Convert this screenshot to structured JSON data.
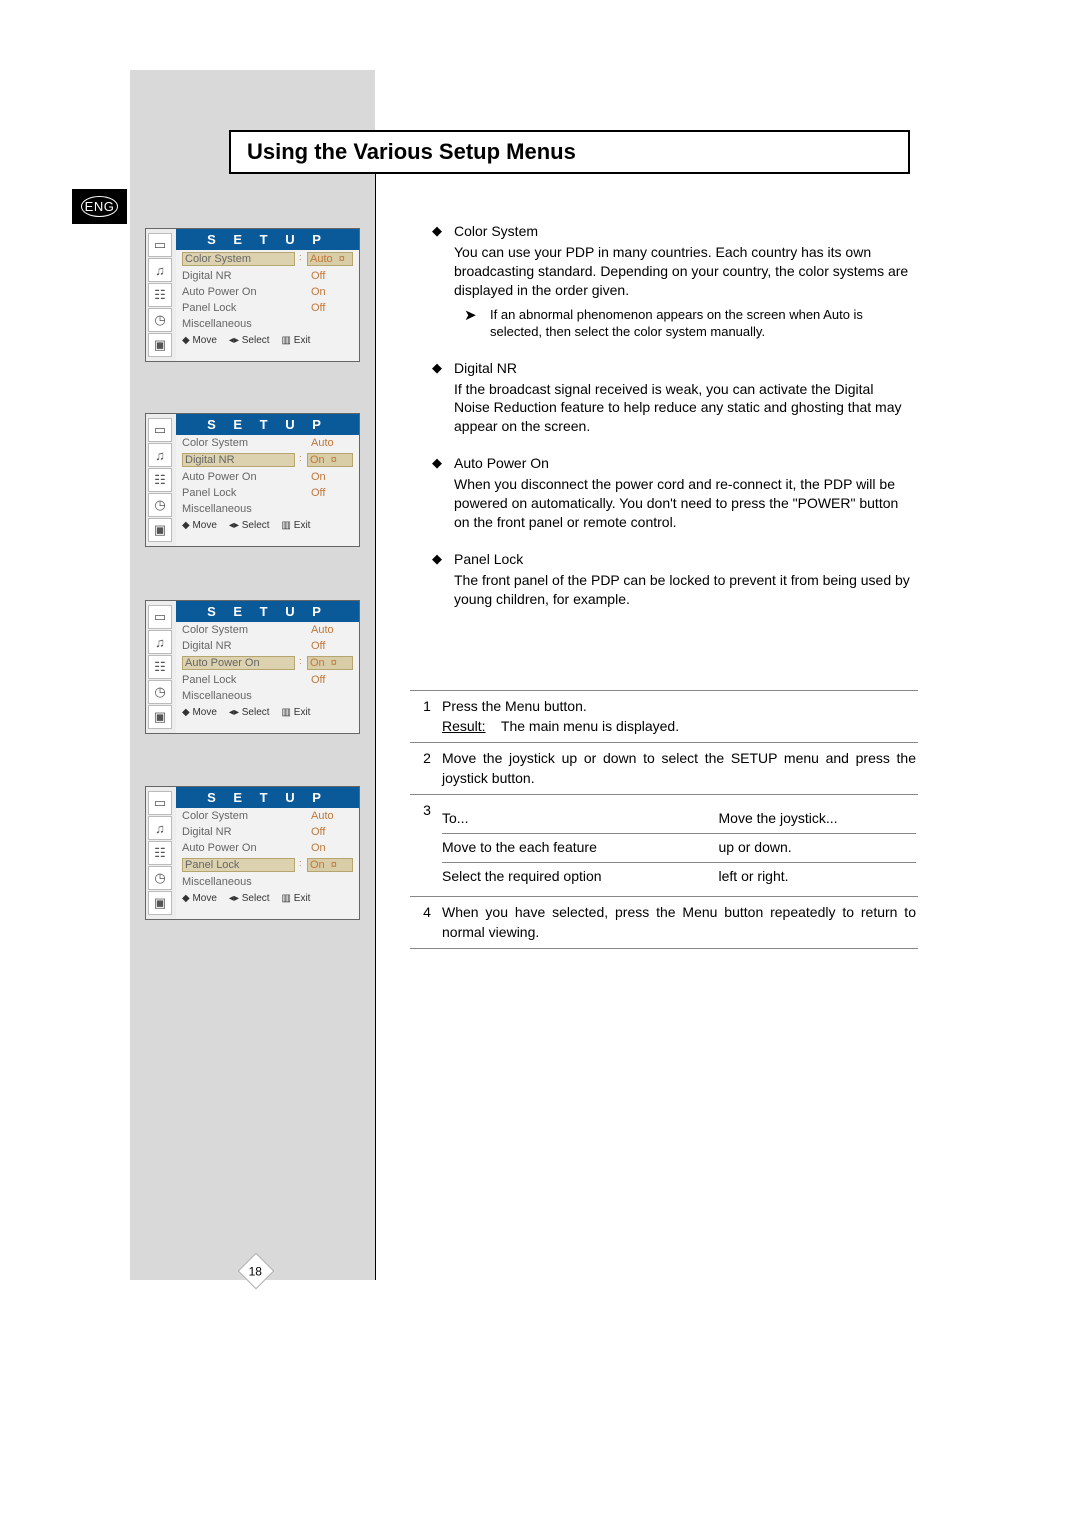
{
  "badge": "ENG",
  "title": "Using the Various Setup Menus",
  "page_number": "18",
  "setup_header": "S E T U P",
  "footer": {
    "move": "Move",
    "select": "Select",
    "exit": "Exit"
  },
  "menus": [
    {
      "rows": [
        {
          "label": "Color System",
          "value": "Auto",
          "highlight_value": true,
          "tick": true
        },
        {
          "label": "Digital NR",
          "value": "Off"
        },
        {
          "label": "Auto Power On",
          "value": "On"
        },
        {
          "label": "Panel Lock",
          "value": "Off"
        },
        {
          "label": "Miscellaneous",
          "value": ""
        }
      ]
    },
    {
      "rows": [
        {
          "label": "Color System",
          "value": "Auto"
        },
        {
          "label": "Digital NR",
          "value": "On",
          "highlight_value": true,
          "tick": true
        },
        {
          "label": "Auto Power On",
          "value": "On"
        },
        {
          "label": "Panel Lock",
          "value": "Off"
        },
        {
          "label": "Miscellaneous",
          "value": ""
        }
      ]
    },
    {
      "rows": [
        {
          "label": "Color System",
          "value": "Auto"
        },
        {
          "label": "Digital NR",
          "value": "Off"
        },
        {
          "label": "Auto Power On",
          "value": "On",
          "highlight_value": true,
          "tick": true
        },
        {
          "label": "Panel Lock",
          "value": "Off"
        },
        {
          "label": "Miscellaneous",
          "value": ""
        }
      ]
    },
    {
      "rows": [
        {
          "label": "Color System",
          "value": "Auto"
        },
        {
          "label": "Digital NR",
          "value": "Off"
        },
        {
          "label": "Auto Power On",
          "value": "On"
        },
        {
          "label": "Panel Lock",
          "value": "On",
          "highlight_value": true,
          "tick": true
        },
        {
          "label": "Miscellaneous",
          "value": ""
        }
      ]
    }
  ],
  "menu_tops": [
    228,
    413,
    600,
    786
  ],
  "icons": [
    "▭",
    "♫",
    "☷",
    "◷",
    "▣"
  ],
  "bullets": [
    {
      "title": "Color System",
      "text": "You can use your PDP in many countries. Each country has its own broadcasting standard. Depending on your country, the color systems are displayed in the order given.",
      "note": "If an abnormal phenomenon appears on the screen when Auto is selected, then select the color system manually."
    },
    {
      "title": "Digital NR",
      "text": "If the broadcast signal received is weak, you can activate the Digital Noise Reduction feature to help reduce any static and ghosting that may appear on the screen."
    },
    {
      "title": "Auto Power On",
      "text": "When you disconnect the power cord and re-connect it, the PDP will be powered on automatically. You don't need to press the \"POWER\" button on the front panel or remote control."
    },
    {
      "title": "Panel Lock",
      "text": "The front panel of the PDP can be locked to prevent it from being used by young children, for example."
    }
  ],
  "steps": {
    "s1_a": "Press the Menu button.",
    "s1_r": "Result:",
    "s1_b": "The main menu is displayed.",
    "s2": "Move the joystick up or down to select the SETUP menu and press the joystick button.",
    "s3_h1": "To...",
    "s3_h2": "Move the joystick...",
    "s3_r1a": "Move to the each feature",
    "s3_r1b": "up or down.",
    "s3_r2a": "Select the required option",
    "s3_r2b": "left or right.",
    "s4": "When you have selected, press the Menu button repeatedly to return to normal viewing."
  }
}
